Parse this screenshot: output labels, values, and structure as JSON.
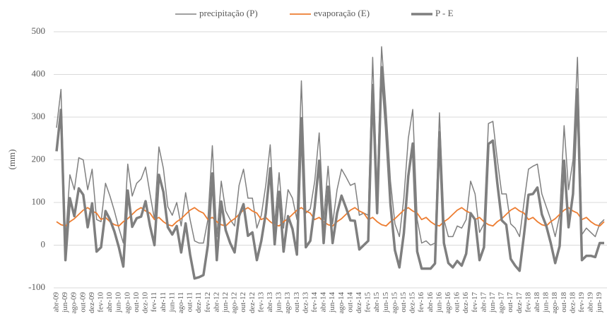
{
  "chart_data": {
    "type": "line",
    "y_label": "(mm)",
    "ylim": [
      -100,
      500
    ],
    "yticks": [
      -100,
      0,
      100,
      200,
      300,
      400,
      500
    ],
    "grid": true,
    "legend": "top",
    "categories": [
      "abr-09",
      null,
      "jun-09",
      null,
      "ago-09",
      null,
      "out-09",
      null,
      "dez-09",
      null,
      "fev-10",
      null,
      "abr-10",
      null,
      "jun-10",
      null,
      "ago-10",
      null,
      "out-10",
      null,
      "dez-10",
      null,
      "fev-11",
      null,
      "abr-11",
      null,
      "jun-11",
      null,
      "ago-11",
      null,
      "out-11",
      null,
      "dez-11",
      null,
      "fev-12",
      null,
      "abr-12",
      null,
      "jun-12",
      null,
      "ago-12",
      null,
      "out-12",
      null,
      "dez-12",
      null,
      "fev-13",
      null,
      "abr-13",
      null,
      "jun-13",
      null,
      "ago-13",
      null,
      "out-13",
      null,
      "dez-13",
      null,
      "fev-14",
      null,
      "abr-14",
      null,
      "jun-14",
      null,
      "ago-14",
      null,
      "out-14",
      null,
      "dez-14",
      null,
      "fev-15",
      null,
      "abr-15",
      null,
      "jun-15",
      null,
      "ago-15",
      null,
      "out-15",
      null,
      "dez-15",
      null,
      "fev-16",
      null,
      "abr-16",
      null,
      "jun-16",
      null,
      "ago-16",
      null,
      "out-16",
      null,
      "dez-16",
      null,
      "fev-17",
      null,
      "abr-17",
      null,
      "jun-17",
      null,
      "ago-17",
      null,
      "out-17",
      null,
      "dez-17",
      null,
      "fev-18",
      null,
      "abr-18",
      null,
      "jun-18",
      null,
      "ago-18",
      null,
      "out-18",
      null,
      "dez-18",
      null,
      "fev-19",
      null,
      "abr-19",
      null,
      "jun-19",
      null
    ],
    "series": [
      {
        "name": "precipitação (P)",
        "color": "#808080",
        "values": [
          275,
          365,
          10,
          165,
          130,
          205,
          200,
          130,
          178,
          60,
          55,
          145,
          115,
          80,
          40,
          5,
          190,
          115,
          145,
          155,
          183,
          120,
          60,
          230,
          180,
          90,
          70,
          100,
          45,
          123,
          60,
          10,
          5,
          5,
          60,
          233,
          20,
          150,
          80,
          60,
          45,
          140,
          178,
          110,
          110,
          40,
          70,
          140,
          235,
          50,
          170,
          40,
          130,
          110,
          60,
          385,
          75,
          85,
          150,
          263,
          60,
          185,
          50,
          130,
          178,
          160,
          140,
          145,
          70,
          75,
          70,
          440,
          130,
          465,
          320,
          150,
          50,
          20,
          110,
          250,
          318,
          60,
          5,
          10,
          0,
          5,
          310,
          60,
          20,
          20,
          45,
          40,
          60,
          150,
          120,
          30,
          50,
          285,
          290,
          200,
          120,
          120,
          50,
          40,
          20,
          100,
          178,
          185,
          190,
          120,
          90,
          60,
          20,
          70,
          280,
          130,
          200,
          440,
          25,
          40,
          30,
          20,
          50,
          60
        ]
      },
      {
        "name": "evaporação (E)",
        "color": "#ed7d31",
        "values": [
          55,
          48,
          45,
          55,
          62,
          72,
          82,
          88,
          80,
          75,
          60,
          65,
          55,
          48,
          45,
          55,
          62,
          72,
          82,
          88,
          80,
          75,
          60,
          65,
          55,
          48,
          45,
          55,
          62,
          72,
          82,
          88,
          80,
          75,
          60,
          65,
          55,
          48,
          45,
          55,
          62,
          72,
          82,
          88,
          80,
          75,
          60,
          65,
          55,
          48,
          45,
          55,
          62,
          72,
          82,
          88,
          80,
          75,
          60,
          65,
          55,
          48,
          45,
          55,
          62,
          72,
          82,
          88,
          80,
          75,
          60,
          65,
          55,
          48,
          45,
          55,
          62,
          72,
          82,
          88,
          80,
          75,
          60,
          65,
          55,
          48,
          45,
          55,
          62,
          72,
          82,
          88,
          80,
          75,
          60,
          65,
          55,
          48,
          45,
          55,
          62,
          72,
          82,
          88,
          80,
          75,
          60,
          65,
          55,
          48,
          45,
          55,
          62,
          72,
          82,
          88,
          80,
          75,
          60,
          65,
          55,
          48,
          45,
          55
        ]
      },
      {
        "name": "P - E",
        "color": "#7f7f7f",
        "values": [
          220,
          317,
          -35,
          110,
          68,
          133,
          118,
          42,
          98,
          -15,
          -5,
          80,
          60,
          32,
          -5,
          -50,
          128,
          43,
          63,
          67,
          103,
          45,
          0,
          165,
          125,
          42,
          25,
          45,
          -17,
          51,
          -22,
          -78,
          -75,
          -70,
          0,
          168,
          -35,
          102,
          35,
          5,
          -17,
          68,
          96,
          22,
          30,
          -35,
          10,
          75,
          180,
          2,
          125,
          -15,
          68,
          38,
          -22,
          297,
          -5,
          10,
          90,
          198,
          5,
          137,
          5,
          75,
          116,
          88,
          58,
          57,
          -10,
          0,
          10,
          375,
          75,
          417,
          275,
          95,
          -12,
          -52,
          28,
          162,
          238,
          -15,
          -55,
          -55,
          -55,
          -43,
          265,
          5,
          -42,
          -52,
          -37,
          -48,
          -20,
          75,
          60,
          -35,
          -5,
          237,
          245,
          145,
          58,
          48,
          -32,
          -48,
          -60,
          25,
          118,
          120,
          135,
          72,
          45,
          5,
          -42,
          -2,
          198,
          42,
          120,
          365,
          -35,
          -25,
          -25,
          -28,
          5,
          5
        ]
      }
    ]
  }
}
